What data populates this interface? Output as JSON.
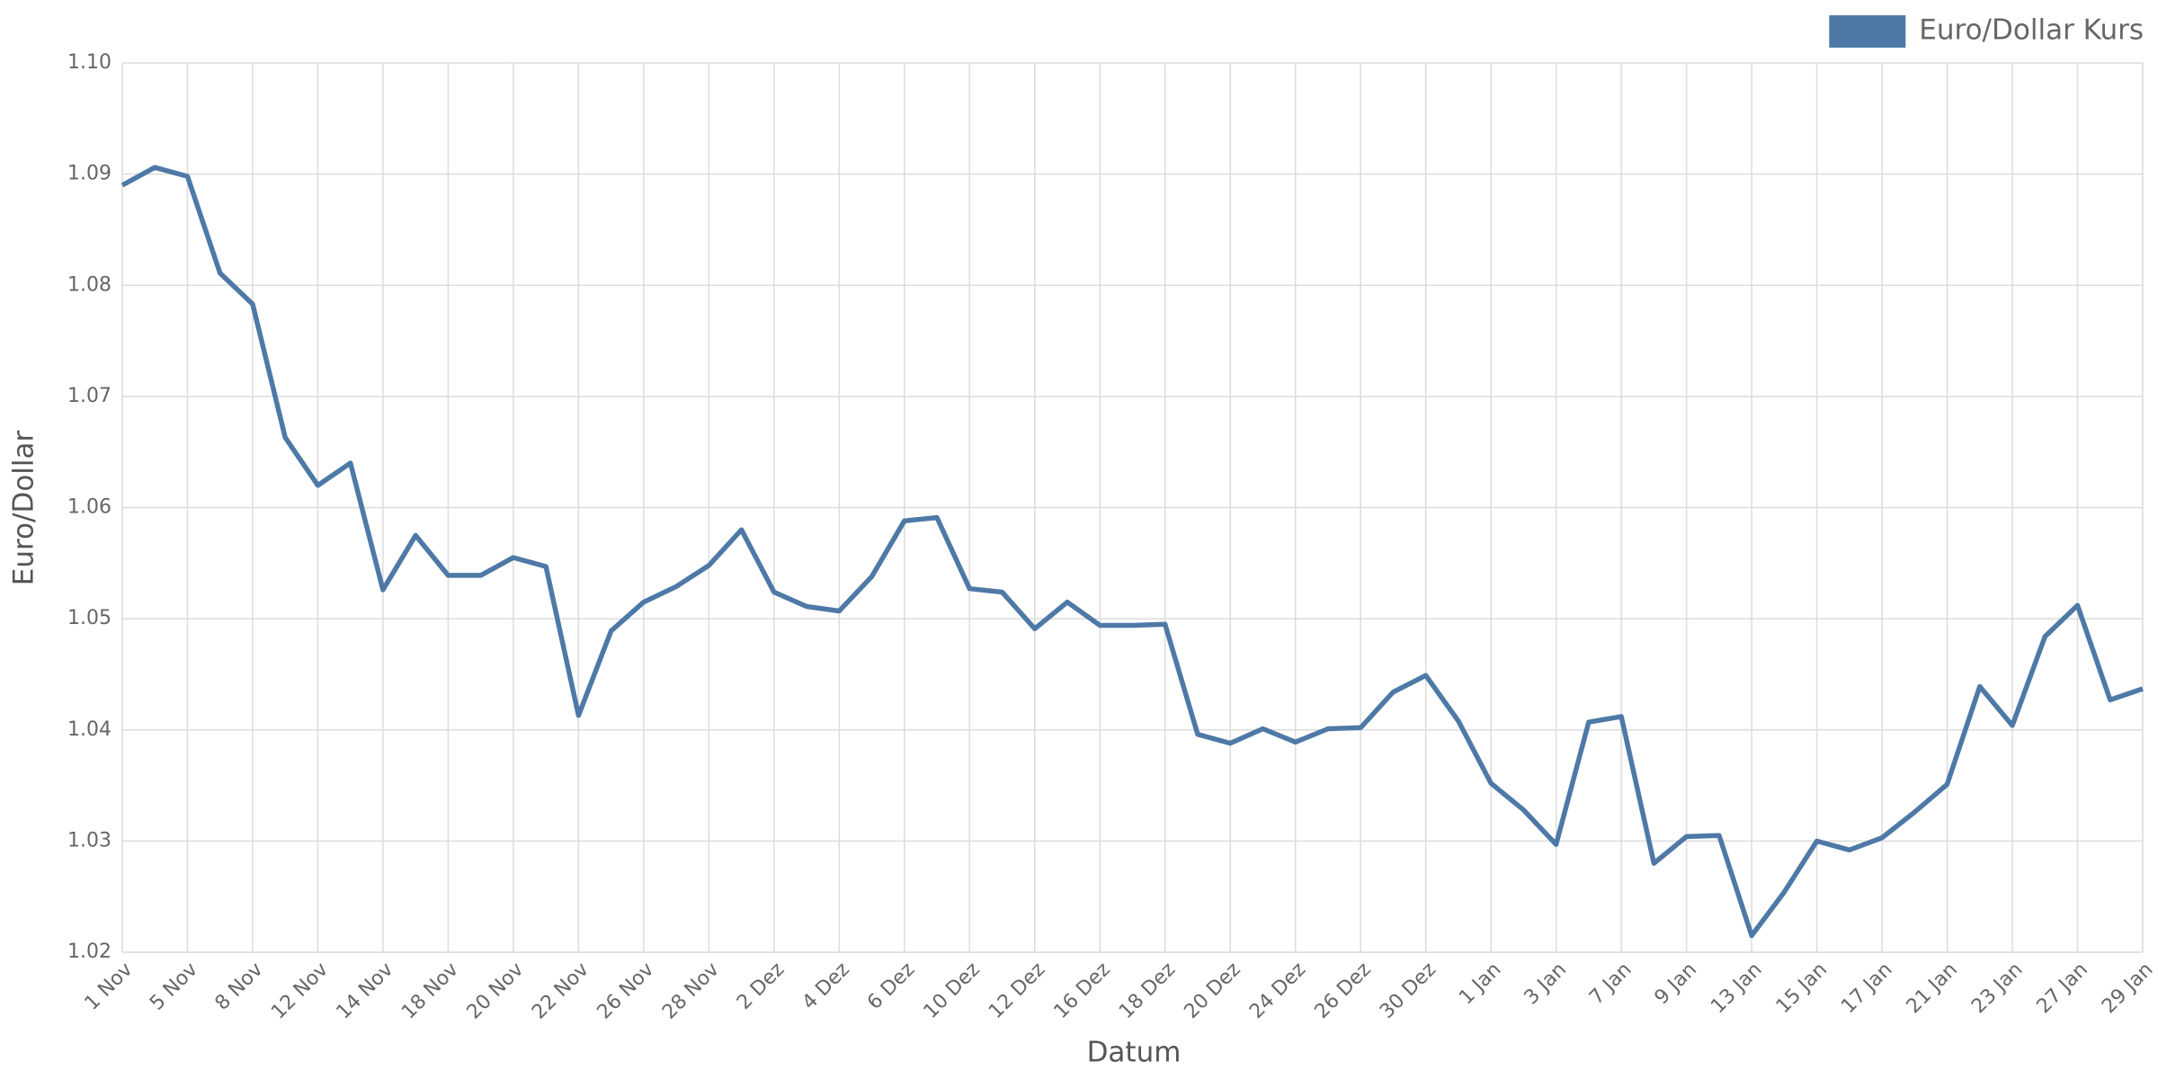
{
  "chart_data": {
    "type": "line",
    "x_label": "Datum",
    "y_label": "Euro/Dollar",
    "categories": [
      "1 Nov",
      null,
      "5 Nov",
      null,
      "8 Nov",
      null,
      "12 Nov",
      null,
      "14 Nov",
      null,
      "18 Nov",
      null,
      "20 Nov",
      null,
      "22 Nov",
      null,
      "26 Nov",
      null,
      "28 Nov",
      null,
      "2 Dez",
      null,
      "4 Dez",
      null,
      "6 Dez",
      null,
      "10 Dez",
      null,
      "12 Dez",
      null,
      "16 Dez",
      null,
      "18 Dez",
      null,
      "20 Dez",
      null,
      "24 Dez",
      null,
      "26 Dez",
      null,
      "30 Dez",
      null,
      "1 Jan",
      null,
      "3 Jan",
      null,
      "7 Jan",
      null,
      "9 Jan",
      null,
      "13 Jan",
      null,
      "15 Jan",
      null,
      "17 Jan",
      null,
      "21 Jan",
      null,
      "23 Jan",
      null,
      "27 Jan",
      null,
      "29 Jan"
    ],
    "series": [
      {
        "name": "Euro/Dollar Kurs",
        "color": "#4e79a7",
        "values": [
          1.089,
          1.0906,
          1.0898,
          1.0811,
          1.0783,
          1.0663,
          1.062,
          1.064,
          1.0526,
          1.0575,
          1.0539,
          1.0539,
          1.0555,
          1.0547,
          1.0413,
          1.0489,
          1.0515,
          1.0529,
          1.0548,
          1.058,
          1.0524,
          1.0511,
          1.0507,
          1.0538,
          1.0588,
          1.0591,
          1.0527,
          1.0524,
          1.0491,
          1.0515,
          1.0494,
          1.0494,
          1.0495,
          1.0396,
          1.0388,
          1.0401,
          1.0389,
          1.0401,
          1.0402,
          1.0434,
          1.0449,
          1.0408,
          1.0352,
          1.0328,
          1.0297,
          1.0407,
          1.0412,
          1.028,
          1.0304,
          1.0305,
          1.0215,
          1.0254,
          1.03,
          1.0292,
          1.0303,
          1.0326,
          1.0351,
          1.0439,
          1.0404,
          1.0484,
          1.0512,
          1.0427,
          1.0437
        ]
      }
    ],
    "ylim": [
      1.02,
      1.1
    ],
    "yticks": [
      1.02,
      1.03,
      1.04,
      1.05,
      1.06,
      1.07,
      1.08,
      1.09,
      {
        "value": 1.1,
        "label": "1.10"
      }
    ],
    "grid": true,
    "legend": "upper right"
  }
}
